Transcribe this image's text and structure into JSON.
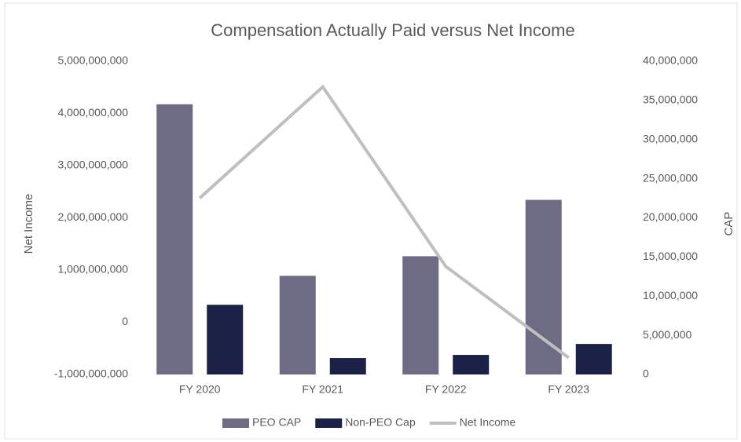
{
  "chart_data": {
    "type": "bar",
    "title": "Compensation Actually Paid versus Net Income",
    "y_label": "Net Income",
    "y2_label": "CAP",
    "categories": [
      "FY 2020",
      "FY 2021",
      "FY 2022",
      "FY 2023"
    ],
    "series": [
      {
        "name": "PEO CAP",
        "type": "bar",
        "axis": "y2",
        "color": "#6e6c85",
        "values": [
          34500000,
          12600000,
          15100000,
          22300000
        ]
      },
      {
        "name": "Non-PEO Cap",
        "type": "bar",
        "axis": "y2",
        "color": "#1b2147",
        "values": [
          8900000,
          2100000,
          2500000,
          3900000
        ]
      },
      {
        "name": "Net Income",
        "type": "line",
        "color": "#bfbfbf",
        "values": [
          2380000000,
          4510000000,
          1070000000,
          -680000000
        ]
      }
    ],
    "ylim": [
      -1000000000,
      5000000000
    ],
    "yticks": [
      {
        "value": -1000000000,
        "label": "-1,000,000,000"
      },
      0,
      {
        "value": 1000000000,
        "label": "1,000,000,000"
      },
      {
        "value": 2000000000,
        "label": "2,000,000,000"
      },
      {
        "value": 3000000000,
        "label": "3,000,000,000"
      },
      {
        "value": 4000000000,
        "label": "4,000,000,000"
      },
      {
        "value": 5000000000,
        "label": "5,000,000,000"
      }
    ],
    "y2lim": [
      0,
      40000000
    ],
    "y2ticks": [
      0,
      {
        "value": 5000000,
        "label": "5,000,000"
      },
      {
        "value": 10000000,
        "label": "10,000,000"
      },
      {
        "value": 15000000,
        "label": "15,000,000"
      },
      {
        "value": 20000000,
        "label": "20,000,000"
      },
      {
        "value": 25000000,
        "label": "25,000,000"
      },
      {
        "value": 30000000,
        "label": "30,000,000"
      },
      {
        "value": 35000000,
        "label": "35,000,000"
      },
      {
        "value": 40000000,
        "label": "40,000,000"
      }
    ],
    "legend": "bottom"
  }
}
